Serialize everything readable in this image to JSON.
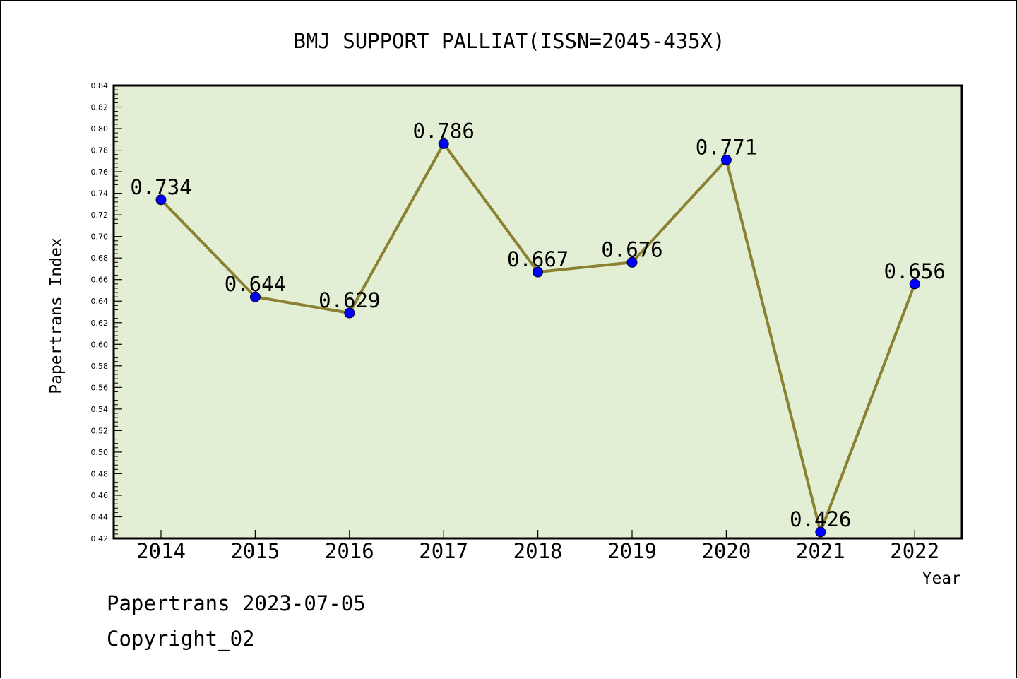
{
  "chart_data": {
    "type": "line",
    "title": "BMJ SUPPORT PALLIAT(ISSN=2045-435X)",
    "xlabel": "Year",
    "ylabel": "Papertrans Index",
    "categories": [
      "2014",
      "2015",
      "2016",
      "2017",
      "2018",
      "2019",
      "2020",
      "2021",
      "2022"
    ],
    "values": [
      0.734,
      0.644,
      0.629,
      0.786,
      0.667,
      0.676,
      0.771,
      0.426,
      0.656
    ],
    "data_labels": [
      "0.734",
      "0.644",
      "0.629",
      "0.786",
      "0.667",
      "0.676",
      "0.771",
      "0.426",
      "0.656"
    ],
    "ylim": [
      0.42,
      0.84
    ],
    "yticks": [
      "0.42",
      "0.44",
      "0.46",
      "0.48",
      "0.50",
      "0.52",
      "0.54",
      "0.56",
      "0.58",
      "0.60",
      "0.62",
      "0.64",
      "0.66",
      "0.68",
      "0.70",
      "0.72",
      "0.74",
      "0.76",
      "0.78",
      "0.80",
      "0.82",
      "0.84"
    ],
    "grid": false,
    "colors": {
      "plot_background": "#e2efd4",
      "line": "#8b8132",
      "marker": "#0000ff"
    }
  },
  "footer": {
    "date_line": "Papertrans 2023-07-05",
    "copyright": "Copyright_02"
  }
}
